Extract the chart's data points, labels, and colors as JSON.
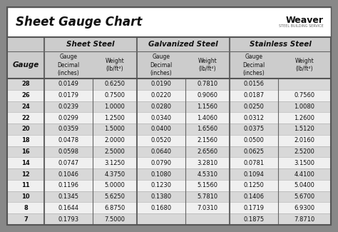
{
  "title": "Sheet Gauge Chart",
  "outer_bg": "#888888",
  "title_bg": "#ffffff",
  "table_bg": "#ffffff",
  "header_bg": "#cccccc",
  "row_bg_dark": "#d8d8d8",
  "row_bg_light": "#f0f0f0",
  "border_color": "#555555",
  "text_color": "#111111",
  "gauges": [
    28,
    26,
    24,
    22,
    20,
    18,
    16,
    14,
    12,
    11,
    10,
    8,
    7
  ],
  "sheet_steel_decimal": [
    "0.0149",
    "0.0179",
    "0.0239",
    "0.0299",
    "0.0359",
    "0.0478",
    "0.0598",
    "0.0747",
    "0.1046",
    "0.1196",
    "0.1345",
    "0.1644",
    "0.1793"
  ],
  "sheet_steel_weight": [
    "0.6250",
    "0.7500",
    "1.0000",
    "1.2500",
    "1.5000",
    "2.0000",
    "2.5000",
    "3.1250",
    "4.3750",
    "5.0000",
    "5.6250",
    "6.8750",
    "7.5000"
  ],
  "galvanized_decimal": [
    "0.0190",
    "0.0220",
    "0.0280",
    "0.0340",
    "0.0400",
    "0.0520",
    "0.0640",
    "0.0790",
    "0.1080",
    "0.1230",
    "0.1380",
    "0.1680",
    ""
  ],
  "galvanized_weight": [
    "0.7810",
    "0.9060",
    "1.1560",
    "1.4060",
    "1.6560",
    "2.1560",
    "2.6560",
    "3.2810",
    "4.5310",
    "5.1560",
    "5.7810",
    "7.0310",
    ""
  ],
  "stainless_decimal": [
    "0.0156",
    "0.0187",
    "0.0250",
    "0.0312",
    "0.0375",
    "0.0500",
    "0.0625",
    "0.0781",
    "0.1094",
    "0.1250",
    "0.1406",
    "0.1719",
    "0.1875"
  ],
  "stainless_weight": [
    "",
    "0.7560",
    "1.0080",
    "1.2600",
    "1.5120",
    "2.0160",
    "2.5200",
    "3.1500",
    "4.4100",
    "5.0400",
    "5.6700",
    "6.9300",
    "7.8710"
  ],
  "col_sep_color": "#666666",
  "title_fontsize": 12,
  "group_header_fontsize": 7.5,
  "sub_header_fontsize": 5.5,
  "gauge_header_fontsize": 7.5,
  "cell_fontsize": 6.0
}
